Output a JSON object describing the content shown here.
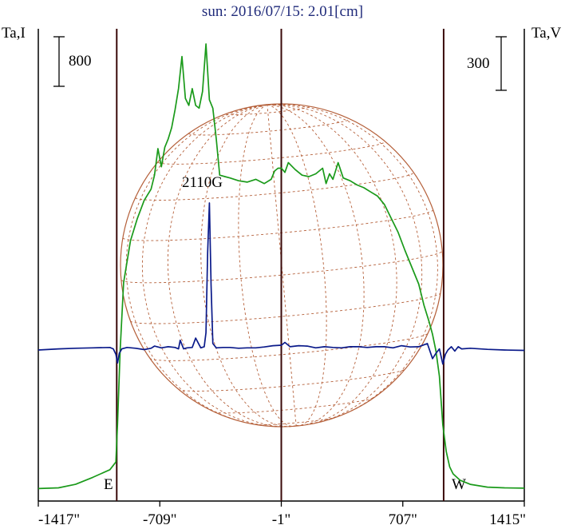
{
  "header": {
    "title": "sun: 2016/07/15: 2.01[cm]",
    "left_axis_label": "Ta,I",
    "right_axis_label": "Ta,V",
    "left_scale_label": "800",
    "right_scale_label": "300"
  },
  "markers": {
    "east": "E",
    "west": "W"
  },
  "colors": {
    "stokes_i": "#1a9a1a",
    "stokes_v": "#0a1a8a",
    "disk_grid": "#b5603a",
    "limb_lines": "#3a0a0a",
    "title": "#1f2a7a"
  },
  "chart_data": {
    "type": "line",
    "title": "sun: 2016/07/15: 2.01[cm]",
    "xlabel": "",
    "ylabel_left": "Ta,I",
    "ylabel_right": "Ta,V",
    "x_ticks": [
      -1417,
      -709,
      -1,
      707,
      1415
    ],
    "x_tick_labels": [
      "-1417\"",
      "-709\"",
      "-1\"",
      "707\"",
      "1415\""
    ],
    "xlim": [
      -1417,
      1415
    ],
    "vertical_lines": [
      -960,
      -1,
      945
    ],
    "scale_bars": {
      "left_I": 800,
      "right_V": 300
    },
    "annotations": [
      {
        "text": "2110G",
        "x": -430
      }
    ],
    "limb_labels": {
      "east": "E",
      "west": "W"
    },
    "series": [
      {
        "color": "green",
        "axis": "left",
        "x": [
          -1417,
          -1300,
          -1200,
          -1100,
          -1000,
          -965,
          -955,
          -940,
          -920,
          -880,
          -840,
          -800,
          -760,
          -740,
          -720,
          -700,
          -680,
          -660,
          -640,
          -620,
          -600,
          -580,
          -560,
          -540,
          -520,
          -500,
          -480,
          -460,
          -440,
          -420,
          -400,
          -380,
          -360,
          -330,
          -300,
          -250,
          -200,
          -150,
          -100,
          -60,
          -40,
          -20,
          0,
          20,
          40,
          80,
          120,
          160,
          200,
          240,
          260,
          280,
          300,
          330,
          360,
          400,
          440,
          480,
          520,
          560,
          600,
          640,
          680,
          720,
          760,
          800,
          830,
          860,
          880,
          900,
          920,
          940,
          960,
          980,
          1000,
          1040,
          1100,
          1200,
          1300,
          1415
        ],
        "y": [
          15,
          20,
          45,
          95,
          150,
          205,
          480,
          1010,
          1490,
          1790,
          1950,
          2080,
          2160,
          2260,
          2450,
          2320,
          2460,
          2520,
          2600,
          2730,
          2880,
          3110,
          2810,
          2760,
          2880,
          2760,
          2740,
          2860,
          3200,
          2800,
          2740,
          2520,
          2260,
          2250,
          2240,
          2220,
          2210,
          2230,
          2200,
          2230,
          2290,
          2310,
          2310,
          2280,
          2350,
          2300,
          2260,
          2250,
          2270,
          2310,
          2200,
          2270,
          2230,
          2350,
          2240,
          2220,
          2190,
          2170,
          2140,
          2110,
          2050,
          1950,
          1850,
          1720,
          1600,
          1480,
          1330,
          1210,
          1120,
          1000,
          820,
          470,
          280,
          170,
          120,
          75,
          45,
          25,
          20,
          18
        ]
      },
      {
        "color": "blue",
        "axis": "right",
        "x": [
          -1417,
          -1300,
          -1200,
          -1100,
          -1000,
          -980,
          -965,
          -955,
          -945,
          -930,
          -900,
          -850,
          -800,
          -760,
          -740,
          -700,
          -660,
          -620,
          -600,
          -590,
          -570,
          -550,
          -520,
          -500,
          -470,
          -450,
          -440,
          -430,
          -420,
          -410,
          -400,
          -380,
          -340,
          -300,
          -250,
          -200,
          -150,
          -100,
          -50,
          0,
          20,
          50,
          100,
          150,
          200,
          250,
          300,
          350,
          400,
          450,
          500,
          550,
          600,
          650,
          700,
          750,
          800,
          850,
          880,
          900,
          920,
          940,
          955,
          970,
          990,
          1010,
          1030,
          1050,
          1100,
          1200,
          1300,
          1415
        ],
        "y": [
          0,
          5,
          8,
          10,
          12,
          5,
          -20,
          -60,
          -15,
          5,
          12,
          8,
          2,
          8,
          18,
          10,
          15,
          12,
          5,
          45,
          5,
          10,
          12,
          55,
          10,
          15,
          80,
          450,
          680,
          300,
          30,
          10,
          12,
          12,
          8,
          10,
          10,
          14,
          20,
          22,
          35,
          15,
          20,
          18,
          10,
          15,
          12,
          10,
          15,
          15,
          12,
          15,
          15,
          10,
          20,
          14,
          15,
          30,
          -40,
          -15,
          5,
          -65,
          -20,
          0,
          15,
          -5,
          15,
          5,
          8,
          3,
          0,
          -2
        ]
      }
    ]
  }
}
